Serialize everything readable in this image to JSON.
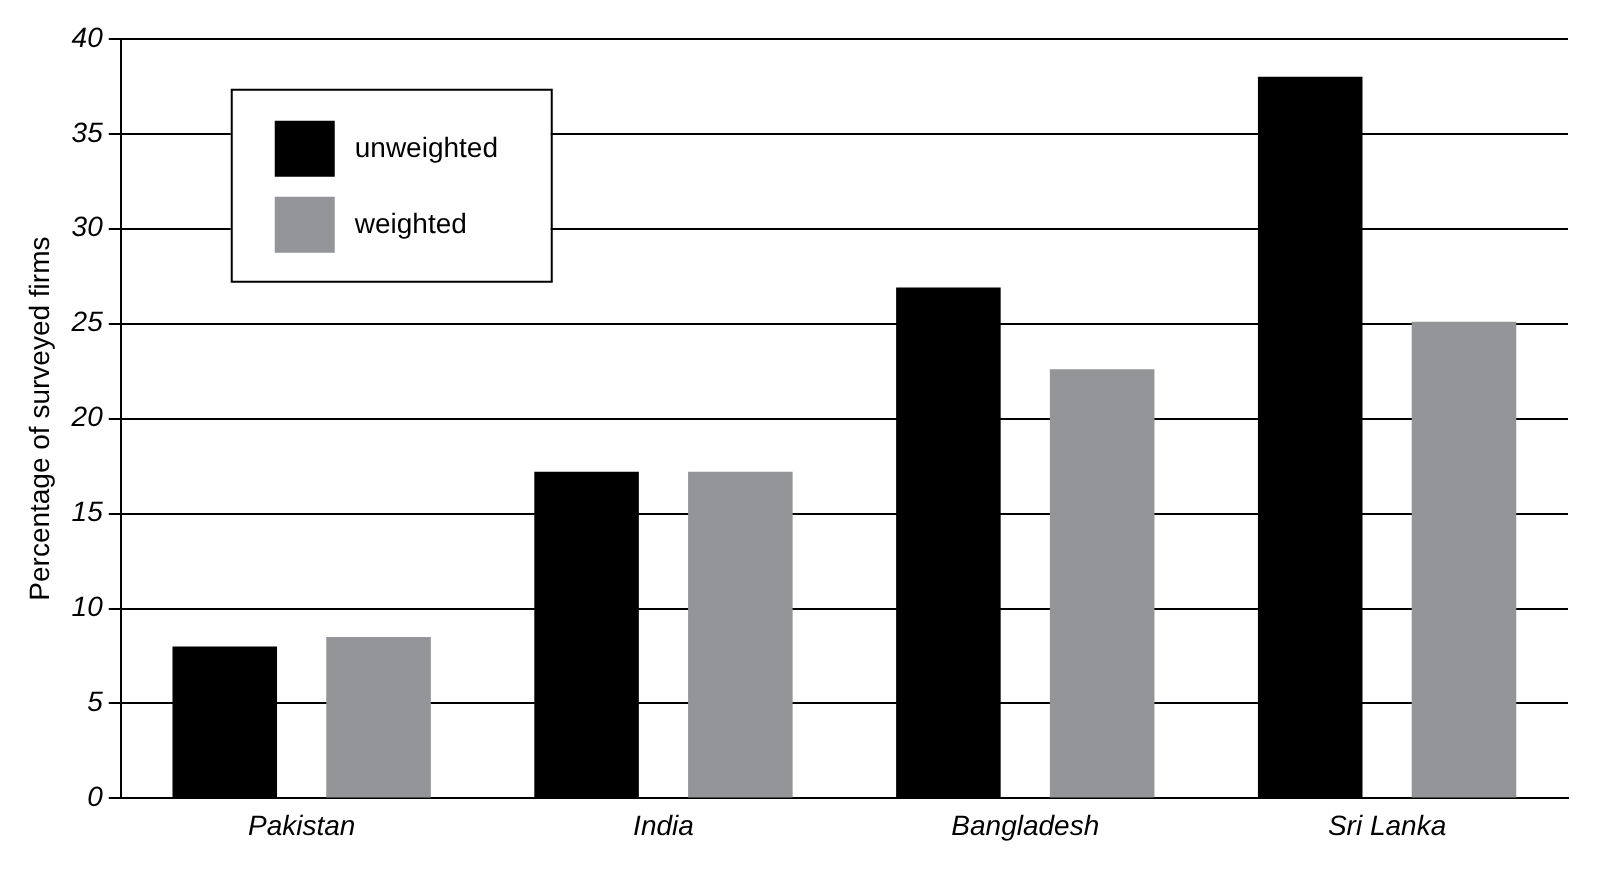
{
  "chart_data": {
    "type": "bar",
    "ylabel": "Percentage of surveyed firms",
    "categories": [
      "Pakistan",
      "India",
      "Bangladesh",
      "Sri Lanka"
    ],
    "series": [
      {
        "name": "unweighted",
        "color": "#000000",
        "values": [
          8,
          17.2,
          26.9,
          38
        ]
      },
      {
        "name": "weighted",
        "color": "#939598",
        "values": [
          8.5,
          17.2,
          22.6,
          25.1
        ]
      }
    ],
    "ylim": [
      0,
      40
    ],
    "yticks": [
      0,
      5,
      10,
      15,
      20,
      25,
      30,
      35,
      40
    ],
    "grid": "y",
    "legend": "top left"
  }
}
